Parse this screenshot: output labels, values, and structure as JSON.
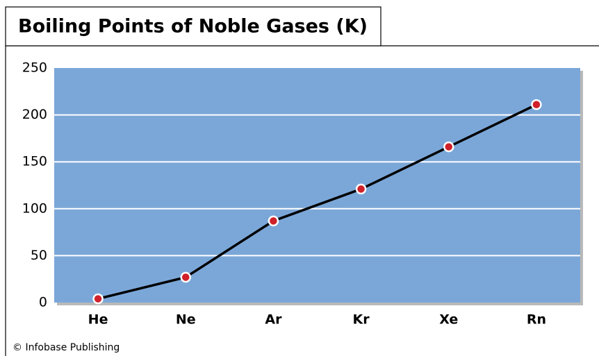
{
  "chart_data": {
    "type": "line",
    "title": "Boiling Points of Noble Gases (K)",
    "categories": [
      "He",
      "Ne",
      "Ar",
      "Kr",
      "Xe",
      "Rn"
    ],
    "values": [
      4,
      27,
      87,
      121,
      166,
      211
    ],
    "color": "#000000",
    "marker_color": "#d0202a",
    "background": "#7ba7d8",
    "ylim": [
      0,
      250
    ],
    "yticks": [
      0,
      50,
      100,
      150,
      200,
      250
    ],
    "grid": true,
    "credit": "© Infobase Publishing"
  }
}
